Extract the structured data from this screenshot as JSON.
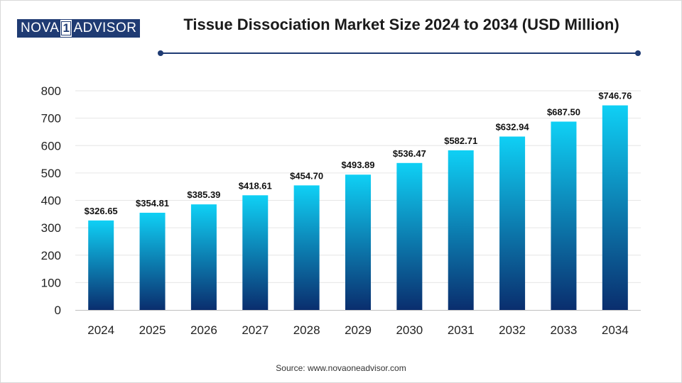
{
  "logo": {
    "left": "NOVA",
    "mid": "1",
    "right": "ADVISOR"
  },
  "header": {
    "title": "Tissue Dissociation Market Size 2024 to 2034 (USD Million)"
  },
  "footer": {
    "source": "Source: www.novaoneadvisor.com"
  },
  "colors": {
    "bar_top": "#0fd0f5",
    "bar_bottom": "#0a2e6e",
    "accent": "#1f3b73"
  },
  "chart_data": {
    "type": "bar",
    "title": "Tissue Dissociation Market Size 2024 to 2034 (USD Million)",
    "xlabel": "",
    "ylabel": "",
    "ylim": [
      0,
      800
    ],
    "yticks": [
      0,
      100,
      200,
      300,
      400,
      500,
      600,
      700,
      800
    ],
    "grid": true,
    "categories": [
      "2024",
      "2025",
      "2026",
      "2027",
      "2028",
      "2029",
      "2030",
      "2031",
      "2032",
      "2033",
      "2034"
    ],
    "values": [
      326.65,
      354.81,
      385.39,
      418.61,
      454.7,
      493.89,
      536.47,
      582.71,
      632.94,
      687.5,
      746.76
    ],
    "labels": [
      "$326.65",
      "$354.81",
      "$385.39",
      "$418.61",
      "$454.70",
      "$493.89",
      "$536.47",
      "$582.71",
      "$632.94",
      "$687.50",
      "$746.76"
    ]
  }
}
